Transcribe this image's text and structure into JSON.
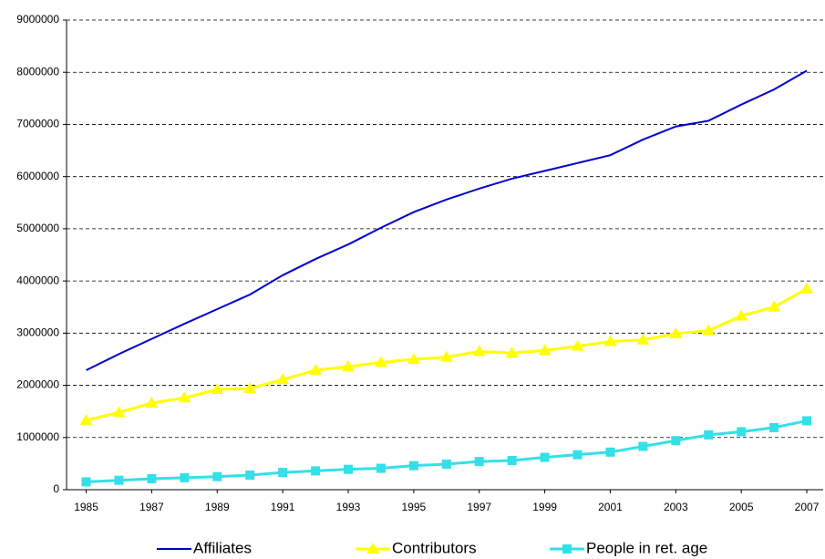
{
  "chart_data": {
    "type": "line",
    "x": [
      1985,
      1986,
      1987,
      1988,
      1989,
      1990,
      1991,
      1992,
      1993,
      1994,
      1995,
      1996,
      1997,
      1998,
      1999,
      2000,
      2001,
      2002,
      2003,
      2004,
      2005,
      2006,
      2007
    ],
    "xlim": [
      1984.4,
      2007.5
    ],
    "xticks": [
      1985,
      1987,
      1989,
      1991,
      1993,
      1995,
      1997,
      1999,
      2001,
      2003,
      2005,
      2007
    ],
    "ylim": [
      0,
      9000000
    ],
    "yticks": [
      0,
      1000000,
      2000000,
      3000000,
      4000000,
      5000000,
      6000000,
      7000000,
      8000000,
      9000000
    ],
    "grid": true,
    "legend": "bottom",
    "series": [
      {
        "name": "Affiliates",
        "color": "#0000cc",
        "values": [
          2290000,
          2600000,
          2890000,
          3180000,
          3460000,
          3740000,
          4110000,
          4420000,
          4700000,
          5020000,
          5320000,
          5560000,
          5770000,
          5960000,
          6110000,
          6260000,
          6410000,
          6710000,
          6960000,
          7070000,
          7380000,
          7670000,
          8030000
        ]
      },
      {
        "name": "Contributors",
        "color": "#ffff00",
        "marker": "triangle",
        "values": [
          1330000,
          1480000,
          1660000,
          1760000,
          1920000,
          1940000,
          2110000,
          2290000,
          2360000,
          2440000,
          2500000,
          2540000,
          2650000,
          2620000,
          2670000,
          2750000,
          2840000,
          2870000,
          2990000,
          3050000,
          3330000,
          3500000,
          3850000
        ]
      },
      {
        "name": "People in ret. age",
        "color": "#33e0e8",
        "marker": "square",
        "values": [
          150000,
          180000,
          210000,
          230000,
          250000,
          280000,
          330000,
          360000,
          390000,
          410000,
          460000,
          490000,
          540000,
          560000,
          620000,
          670000,
          720000,
          830000,
          940000,
          1050000,
          1110000,
          1190000,
          1320000
        ]
      }
    ]
  }
}
